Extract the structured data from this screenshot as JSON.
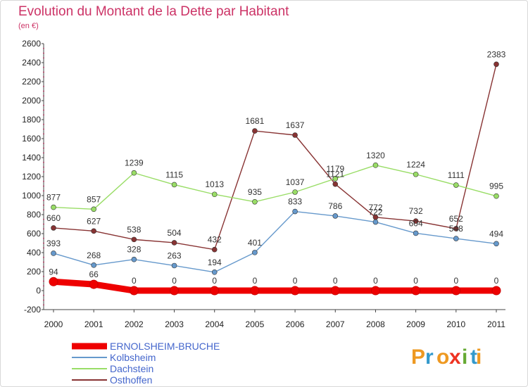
{
  "chart_data": {
    "type": "line",
    "title": "Evolution du Montant de la Dette par Habitant",
    "subtitle": "(en €)",
    "x": [
      "2000",
      "2001",
      "2002",
      "2003",
      "2004",
      "2005",
      "2006",
      "2007",
      "2008",
      "2009",
      "2010",
      "2011"
    ],
    "yticks": [
      "-200",
      "0",
      "200",
      "400",
      "600",
      "800",
      "1000",
      "1200",
      "1400",
      "1600",
      "1800",
      "2000",
      "2200",
      "2400",
      "2600"
    ],
    "ylim": [
      -200,
      2600
    ],
    "grid": false,
    "legend_position": "bottom-left",
    "series": [
      {
        "name": "ERNOLSHEIM-BRUCHE",
        "color": "#ee0000",
        "legend_color": "#4466cc",
        "values": [
          94,
          66,
          0,
          0,
          0,
          0,
          0,
          0,
          0,
          0,
          0,
          0
        ],
        "labels": [
          "94",
          "66",
          "0",
          "0",
          "0",
          "0",
          "0",
          "0",
          "0",
          "0",
          "0",
          "0"
        ]
      },
      {
        "name": "Kolbsheim",
        "color": "#6699cc",
        "legend_color": "#4466cc",
        "values": [
          393,
          268,
          328,
          263,
          194,
          401,
          833,
          786,
          722,
          604,
          548,
          494
        ],
        "labels": [
          "393",
          "268",
          "328",
          "263",
          "194",
          "401",
          "833",
          "786",
          "722",
          "604",
          "548",
          "494"
        ]
      },
      {
        "name": "Dachstein",
        "color": "#99dd66",
        "legend_color": "#4466cc",
        "values": [
          877,
          857,
          1239,
          1115,
          1013,
          935,
          1037,
          1179,
          1320,
          1224,
          1111,
          995
        ],
        "labels": [
          "877",
          "857",
          "1239",
          "1115",
          "1013",
          "935",
          "1037",
          "1179",
          "1320",
          "1224",
          "1111",
          "995"
        ]
      },
      {
        "name": "Osthoffen",
        "color": "#883333",
        "legend_color": "#4466cc",
        "values": [
          660,
          627,
          538,
          504,
          432,
          1681,
          1637,
          1121,
          772,
          732,
          652,
          2383
        ],
        "labels": [
          "660",
          "627",
          "538",
          "504",
          "432",
          "1681",
          "1637",
          "1121",
          "772",
          "732",
          "652",
          "2383"
        ]
      }
    ]
  },
  "logo": {
    "text": "Proxiti"
  }
}
